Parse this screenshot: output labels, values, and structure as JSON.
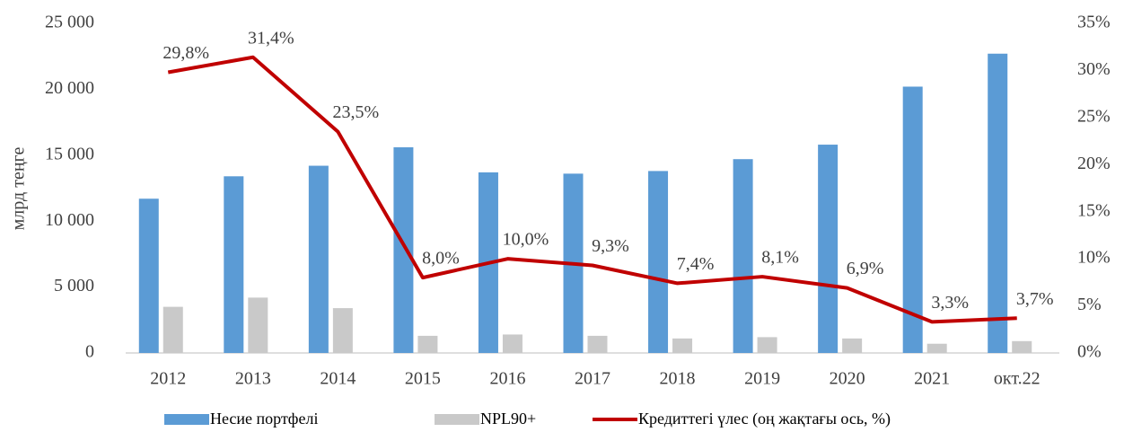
{
  "chart_data": {
    "type": "bar",
    "y_label": "млрд теңге",
    "categories": [
      "2012",
      "2013",
      "2014",
      "2015",
      "2016",
      "2017",
      "2018",
      "2019",
      "2020",
      "2021",
      "окт.22"
    ],
    "series": [
      {
        "name": "Несие портфелі",
        "type": "bar",
        "color": "#5b9bd5",
        "values": [
          11700,
          13400,
          14200,
          15600,
          13700,
          13600,
          13800,
          14700,
          15800,
          20200,
          22700
        ]
      },
      {
        "name": "NPL90+",
        "type": "bar",
        "color": "#c9c9c9",
        "values": [
          3500,
          4200,
          3400,
          1300,
          1400,
          1300,
          1100,
          1200,
          1100,
          700,
          900
        ]
      },
      {
        "name": "Кредиттегі үлес (оң жақтағы ось, %)",
        "type": "line",
        "axis": "y2",
        "color": "#c00000",
        "values": [
          29.8,
          31.4,
          23.5,
          8.0,
          10.0,
          9.3,
          7.4,
          8.1,
          6.9,
          3.3,
          3.7
        ],
        "value_labels": [
          "29,8%",
          "31,4%",
          "23,5%",
          "8,0%",
          "10,0%",
          "9,3%",
          "7,4%",
          "8,1%",
          "6,9%",
          "3,3%",
          "3,7%"
        ]
      }
    ],
    "ylim": [
      0,
      25000
    ],
    "yticks": [
      0,
      {
        "value": 5000,
        "label": "5 000"
      },
      {
        "value": 10000,
        "label": "10 000"
      },
      {
        "value": 15000,
        "label": "15 000"
      },
      {
        "value": 20000,
        "label": "20 000"
      },
      {
        "value": 25000,
        "label": "25 000"
      }
    ],
    "y2lim": [
      0,
      35
    ],
    "y2ticks": [
      {
        "value": 0,
        "label": "0%"
      },
      {
        "value": 5,
        "label": "5%"
      },
      {
        "value": 10,
        "label": "10%"
      },
      {
        "value": 15,
        "label": "15%"
      },
      {
        "value": 20,
        "label": "20%"
      },
      {
        "value": 25,
        "label": "25%"
      },
      {
        "value": 30,
        "label": "30%"
      },
      {
        "value": 35,
        "label": "35%"
      }
    ],
    "grid": false,
    "legend": "bottom"
  }
}
